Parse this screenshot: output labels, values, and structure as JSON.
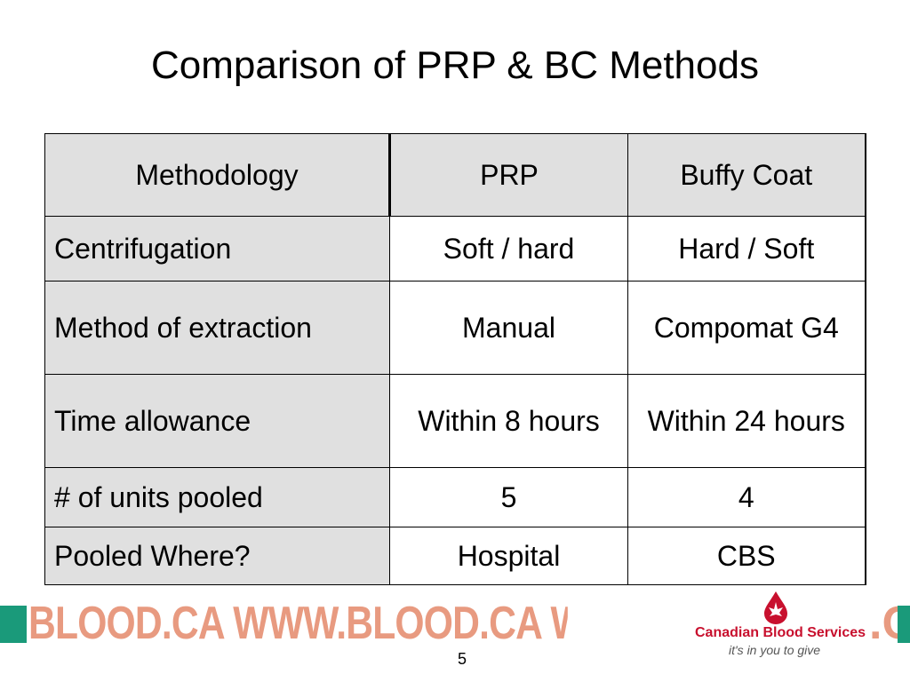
{
  "slide": {
    "title": "Comparison of PRP & BC Methods",
    "page_number": "5"
  },
  "table": {
    "headers": [
      "Methodology",
      "PRP",
      "Buffy Coat"
    ],
    "rows": [
      [
        "Centrifugation",
        "Soft / hard",
        "Hard / Soft"
      ],
      [
        "Method of extraction",
        "Manual",
        "Compomat G4"
      ],
      [
        "Time allowance",
        "Within 8 hours",
        "Within 24 hours"
      ],
      [
        "# of units pooled",
        "5",
        "4"
      ],
      [
        "Pooled Where?",
        "Hospital",
        "CBS"
      ]
    ]
  },
  "footer": {
    "banner_text": "BLOOD.CA WWW.BLOOD.CA WWW",
    "banner_tail": ".C",
    "organization": "Canadian Blood Services",
    "tagline": "it's in you to give"
  },
  "colors": {
    "header_fill": "#e0e0e0",
    "banner_green": "#1a9a7a",
    "banner_text": "#e89a80",
    "brand_red": "#c8102e"
  }
}
